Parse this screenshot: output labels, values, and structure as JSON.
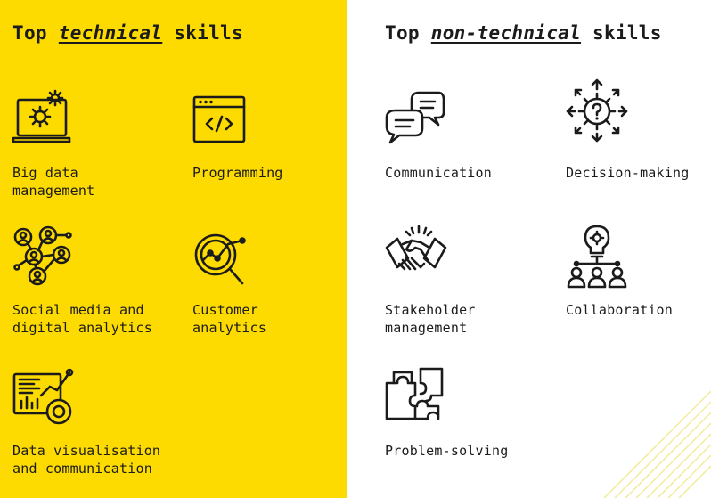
{
  "technical": {
    "heading_prefix": "Top",
    "heading_emphasis": "technical",
    "heading_suffix": "skills",
    "items": [
      {
        "label": "Big data\nmanagement",
        "icon": "laptop-gear-icon"
      },
      {
        "label": "Programming",
        "icon": "code-window-icon"
      },
      {
        "label": "Social media and\ndigital analytics",
        "icon": "social-network-icon"
      },
      {
        "label": "Customer\nanalytics",
        "icon": "magnifier-chart-icon"
      },
      {
        "label": "Data visualisation\nand communication",
        "icon": "dashboard-chart-icon"
      }
    ]
  },
  "non_technical": {
    "heading_prefix": "Top",
    "heading_emphasis": "non-technical",
    "heading_suffix": "skills",
    "items": [
      {
        "label": "Communication",
        "icon": "speech-bubbles-icon"
      },
      {
        "label": "Decision-making",
        "icon": "gear-question-arrows-icon"
      },
      {
        "label": "Stakeholder\nmanagement",
        "icon": "handshake-icon"
      },
      {
        "label": "Collaboration",
        "icon": "lightbulb-team-icon"
      },
      {
        "label": "Problem-solving",
        "icon": "puzzle-icon"
      }
    ]
  },
  "colors": {
    "left_panel": "#fddb00",
    "right_panel": "#ffffff",
    "ink": "#1b1b1b"
  }
}
